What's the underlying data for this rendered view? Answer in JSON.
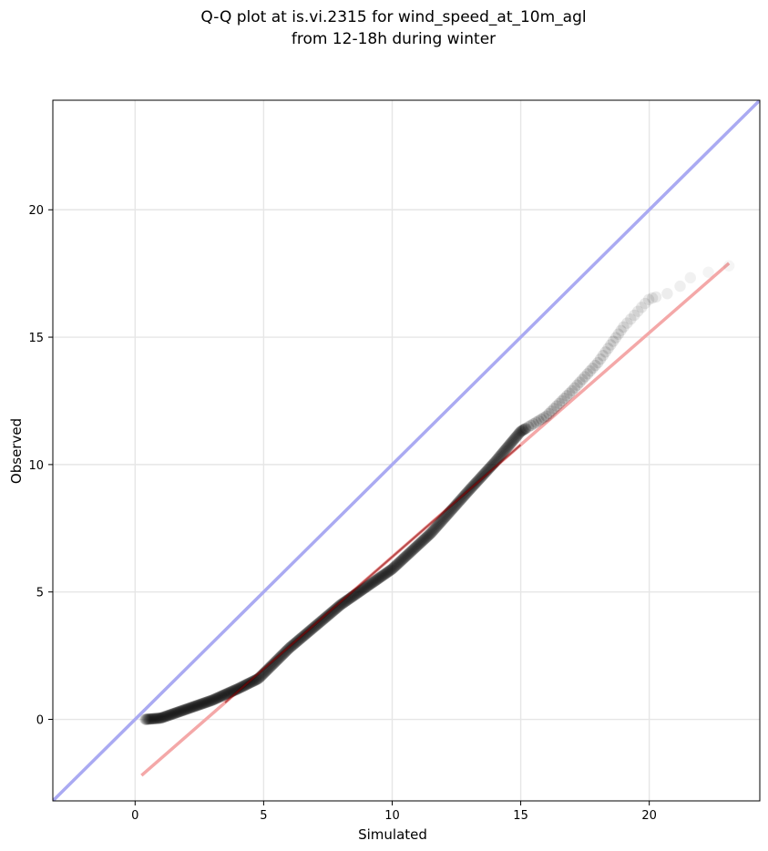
{
  "chart_data": {
    "type": "scatter",
    "title": [
      "Q-Q plot at is.vi.2315 for wind_speed_at_10m_agl",
      "from 12-18h during winter"
    ],
    "xlabel": "Simulated",
    "ylabel": "Observed",
    "xlim": [
      -3.2,
      24.3
    ],
    "ylim": [
      -3.2,
      24.3
    ],
    "x_ticks": [
      0,
      5,
      10,
      15,
      20
    ],
    "y_ticks": [
      0,
      5,
      10,
      15,
      20
    ],
    "grid": true,
    "identity_line": {
      "x": [
        -3.2,
        24.3
      ],
      "y": [
        -3.2,
        24.3
      ],
      "color": "#aaaaf2"
    },
    "fit_line": {
      "x": [
        0.25,
        23.1
      ],
      "y": [
        -2.2,
        17.9
      ],
      "color": "#f4a8a8"
    },
    "highlight_segment": {
      "x": [
        3.5,
        15.0
      ],
      "color": "#8b0000"
    },
    "marker_color": "#000000",
    "anchor_points": [
      {
        "x": 0.4,
        "y": 0.0
      },
      {
        "x": 1.0,
        "y": 0.05
      },
      {
        "x": 2.0,
        "y": 0.4
      },
      {
        "x": 3.0,
        "y": 0.75
      },
      {
        "x": 4.0,
        "y": 1.2
      },
      {
        "x": 4.8,
        "y": 1.6
      },
      {
        "x": 6.0,
        "y": 2.8
      },
      {
        "x": 8.0,
        "y": 4.5
      },
      {
        "x": 10.0,
        "y": 5.9
      },
      {
        "x": 11.5,
        "y": 7.3
      },
      {
        "x": 13.0,
        "y": 9.0
      },
      {
        "x": 14.0,
        "y": 10.1
      },
      {
        "x": 15.0,
        "y": 11.3
      },
      {
        "x": 16.0,
        "y": 11.9
      },
      {
        "x": 17.0,
        "y": 12.9
      },
      {
        "x": 18.0,
        "y": 14.0
      },
      {
        "x": 19.0,
        "y": 15.4
      },
      {
        "x": 20.0,
        "y": 16.5
      },
      {
        "x": 21.0,
        "y": 16.8
      },
      {
        "x": 21.5,
        "y": 17.3
      },
      {
        "x": 23.1,
        "y": 17.8
      }
    ]
  }
}
